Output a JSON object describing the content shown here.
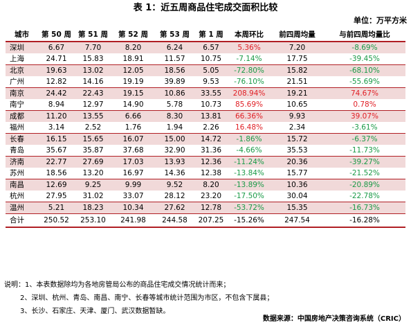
{
  "title": "表 1：近五周商品住宅成交面积比较",
  "unit": "单位：万平方米",
  "table": {
    "headers": [
      "城市",
      "第 50 周",
      "第 51 周",
      "第 52 周",
      "第 53 周",
      "第 1 周",
      "本周环比",
      "前四周均量",
      "与前四周均量比"
    ],
    "rows": [
      [
        "深圳",
        "6.67",
        "7.70",
        "8.20",
        "6.24",
        "6.57",
        "5.36%",
        "7.20",
        "-8.69%"
      ],
      [
        "上海",
        "24.71",
        "15.83",
        "18.91",
        "11.57",
        "10.75",
        "-7.14%",
        "17.75",
        "-39.45%"
      ],
      [
        "北京",
        "19.63",
        "13.02",
        "12.05",
        "18.56",
        "5.05",
        "-72.80%",
        "15.82",
        "-68.10%"
      ],
      [
        "广州",
        "12.82",
        "14.16",
        "19.19",
        "39.89",
        "9.53",
        "-76.10%",
        "21.51",
        "-55.69%"
      ],
      [
        "南京",
        "24.42",
        "22.43",
        "19.15",
        "10.86",
        "33.55",
        "208.94%",
        "19.21",
        "74.67%"
      ],
      [
        "南宁",
        "8.94",
        "12.97",
        "14.90",
        "5.78",
        "10.73",
        "85.69%",
        "10.65",
        "0.78%"
      ],
      [
        "成都",
        "11.20",
        "13.55",
        "6.66",
        "8.30",
        "13.81",
        "66.36%",
        "9.93",
        "39.07%"
      ],
      [
        "福州",
        "3.14",
        "2.52",
        "1.76",
        "1.94",
        "2.26",
        "16.48%",
        "2.34",
        "-3.61%"
      ],
      [
        "长春",
        "16.15",
        "15.65",
        "16.07",
        "15.00",
        "14.72",
        "-1.86%",
        "15.72",
        "-6.37%"
      ],
      [
        "青岛",
        "35.67",
        "35.87",
        "37.68",
        "32.90",
        "31.36",
        "-4.66%",
        "35.53",
        "-11.73%"
      ],
      [
        "济南",
        "22.77",
        "27.69",
        "17.03",
        "13.93",
        "12.36",
        "-11.24%",
        "20.36",
        "-39.27%"
      ],
      [
        "苏州",
        "18.56",
        "13.20",
        "16.97",
        "14.36",
        "12.38",
        "-13.84%",
        "15.77",
        "-21.52%"
      ],
      [
        "南昌",
        "12.69",
        "9.25",
        "9.99",
        "9.52",
        "8.20",
        "-13.89%",
        "10.36",
        "-20.89%"
      ],
      [
        "杭州",
        "27.95",
        "31.02",
        "33.07",
        "28.12",
        "23.20",
        "-17.50%",
        "30.04",
        "-22.78%"
      ],
      [
        "温州",
        "5.21",
        "18.23",
        "10.34",
        "27.62",
        "12.78",
        "-53.72%",
        "15.35",
        "-16.73%"
      ]
    ],
    "total": [
      "合计",
      "250.52",
      "253.10",
      "241.98",
      "244.58",
      "207.25",
      "-15.26%",
      "247.54",
      "-16.28%"
    ]
  },
  "notes": [
    "说明：1、本表数据除均为各地房管局公布的商品住宅成交情况统计而来；",
    "2、深圳、杭州、青岛、南昌、南宁、长春等城市统计范围为市区，不包含下属县；",
    "3、长沙、石家庄、天津、厦门、武汉数据暂缺。"
  ],
  "source": "数据来源：中国房地产决策咨询系统（CRIC）",
  "colors": {
    "accent": "#b01e24",
    "shade": "#f1d9d9",
    "positive": "#e01e24",
    "negative": "#1a9a47"
  }
}
